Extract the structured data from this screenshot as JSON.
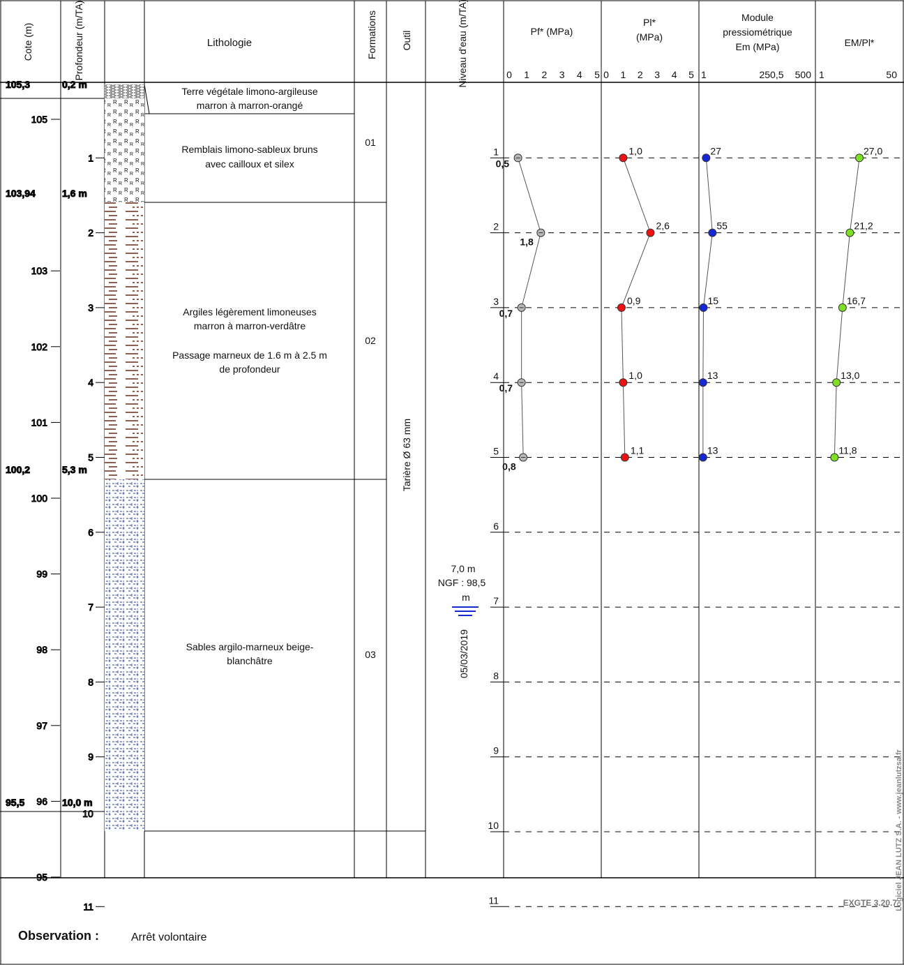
{
  "headers": {
    "cote": "Cote (m)",
    "profondeur": "Profondeur (m/TA)",
    "lithologie": "Lithologie",
    "formations": "Formations",
    "outil": "Outil",
    "niveau": "Niveau d'eau (m/TA)",
    "pf": "Pf* (MPa)",
    "pl_1": "Pl*",
    "pl_2": "(MPa)",
    "em_1": "Module",
    "em_2": "pressiométrique",
    "em_3": "Em (MPa)",
    "empl": "EM/Pl*"
  },
  "scales": {
    "pf": [
      "0",
      "1",
      "2",
      "3",
      "4",
      "5"
    ],
    "pl": [
      "0",
      "1",
      "2",
      "3",
      "4",
      "5"
    ],
    "em": [
      "1",
      "250,5",
      "500"
    ],
    "empl": [
      "1",
      "50"
    ]
  },
  "cote_ticks": [
    "105",
    "103",
    "102",
    "101",
    "100",
    "99",
    "98",
    "97",
    "96",
    "95"
  ],
  "depth_ticks": [
    "1",
    "2",
    "3",
    "4",
    "5",
    "6",
    "7",
    "8",
    "9",
    "11"
  ],
  "depth_overlap_label": "10",
  "boundaries": [
    {
      "cote": "105,3",
      "depth": "0,2 m"
    },
    {
      "cote": "103,94",
      "depth": "1,6 m"
    },
    {
      "cote": "100,2",
      "depth": "5,3 m"
    },
    {
      "cote": "95,5",
      "depth": "10,0 m"
    }
  ],
  "layers": {
    "l0": [
      "Terre végétale limono-argileuse",
      "marron à marron-orangé"
    ],
    "l1": [
      "Remblais limono-sableux bruns",
      "avec cailloux et silex"
    ],
    "l2": [
      "Argiles légèrement limoneuses",
      "marron à marron-verdâtre",
      "",
      "Passage marneux de 1.6 m à 2.5 m",
      "de profondeur"
    ],
    "l3": [
      "Sables argilo-marneux beige-",
      "blanchâtre"
    ]
  },
  "formations": {
    "f1": "01",
    "f2": "02",
    "f3": "03"
  },
  "outil": "Tarière Ø 63 mm",
  "water": {
    "depth": "7,0 m",
    "ngf_1": "NGF : 98,5",
    "ngf_2": "m",
    "date": "05/03/2019"
  },
  "test_depth_labels": [
    "1",
    "2",
    "3",
    "4",
    "5",
    "6",
    "7",
    "8",
    "9",
    "10",
    "11"
  ],
  "observation": {
    "label": "Observation :",
    "value": "Arrêt volontaire"
  },
  "side_credit": "Logiciel JEAN LUTZ S.A. - www.jeanlutzsa.fr",
  "code": "EXGTE 3.20.7",
  "chart_data": {
    "type": "line",
    "title": "",
    "x_depths_m": [
      1,
      2,
      3,
      4,
      5
    ],
    "depth_range": [
      0,
      11.5
    ],
    "cote_range": [
      94.4,
      105.5
    ],
    "series": [
      {
        "name": "Pf* (MPa)",
        "values": [
          0.5,
          1.8,
          0.7,
          0.7,
          0.8
        ],
        "labels": [
          "0,5",
          "1,8",
          "0,7",
          "0,7",
          "0,8"
        ],
        "xlim": [
          0,
          5
        ],
        "color": "#b8b8b8"
      },
      {
        "name": "Pl* (MPa)",
        "values": [
          1.0,
          2.6,
          0.9,
          1.0,
          1.1
        ],
        "labels": [
          "1,0",
          "2,6",
          "0,9",
          "1,0",
          "1,1"
        ],
        "xlim": [
          0,
          5
        ],
        "color": "#ee1111"
      },
      {
        "name": "Module pressiométrique Em (MPa)",
        "values": [
          27,
          55,
          15,
          13,
          13
        ],
        "labels": [
          "27",
          "55",
          "15",
          "13",
          "13"
        ],
        "xlim": [
          1,
          500
        ],
        "color": "#1428d8"
      },
      {
        "name": "EM/Pl*",
        "values": [
          27.0,
          21.2,
          16.7,
          13.0,
          11.8
        ],
        "labels": [
          "27,0",
          "21,2",
          "16,7",
          "13,0",
          "11,8"
        ],
        "xlim": [
          1,
          50
        ],
        "color": "#7ee025"
      }
    ],
    "grid": "dashed lines at each test depth"
  }
}
